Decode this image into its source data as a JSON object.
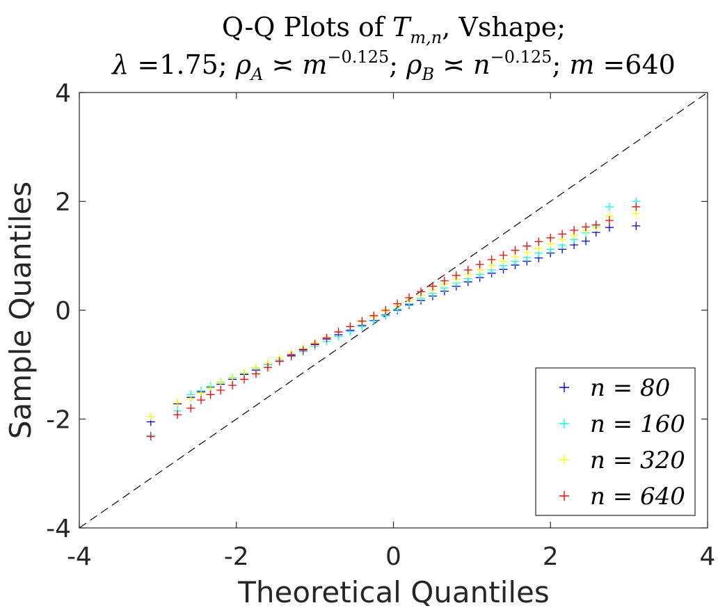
{
  "chart_data": {
    "type": "scatter",
    "title_line1": "Q-Q Plots of T̂m,n, Vshape;",
    "title_line2": "λ =1.75; ρA ≍ m−0.125; ρB ≍ n−0.125; m =640",
    "title_line1_parts": {
      "prefix": "Q-Q Plots of ",
      "symbol": "T",
      "subscript": "m,n",
      "suffix": ", Vshape;"
    },
    "title_line2_parts": {
      "lambda": "λ",
      "lambda_val": " =1.75; ",
      "rhoA": "ρ",
      "rhoA_sub": "A",
      "asymp1": " ≍ ",
      "m_base": "m",
      "m_exp": "−0.125",
      "sep1": "; ",
      "rhoB": "ρ",
      "rhoB_sub": "B",
      "asymp2": " ≍ ",
      "n_base": "n",
      "n_exp": "−0.125",
      "sep2": "; ",
      "m_label": "m",
      "m_val": " =640"
    },
    "xlabel": "Theoretical Quantiles",
    "ylabel": "Sample Quantiles",
    "xlim": [
      -4,
      4
    ],
    "ylim": [
      -4,
      4
    ],
    "xticks": [
      -4,
      -2,
      0,
      2,
      4
    ],
    "yticks": [
      -4,
      -2,
      0,
      2,
      4
    ],
    "xtick_labels": [
      "-4",
      "-2",
      "0",
      "2",
      "4"
    ],
    "ytick_labels": [
      "-4",
      "-2",
      "0",
      "2",
      "4"
    ],
    "reference_line": {
      "x": [
        -4,
        4
      ],
      "y": [
        -4,
        4
      ],
      "style": "dashed",
      "color": "#000000"
    },
    "legend_position": "bottom-right",
    "series": [
      {
        "name": "n = 80",
        "legend_label": "n = 80",
        "color": "#0000ff",
        "x": [
          -3.09,
          -2.75,
          -2.58,
          -2.45,
          -2.33,
          -2.2,
          -2.05,
          -1.9,
          -1.75,
          -1.6,
          -1.45,
          -1.3,
          -1.15,
          -1.0,
          -0.85,
          -0.7,
          -0.55,
          -0.4,
          -0.25,
          -0.1,
          0.05,
          0.2,
          0.35,
          0.5,
          0.65,
          0.8,
          0.95,
          1.1,
          1.25,
          1.4,
          1.55,
          1.7,
          1.85,
          2.0,
          2.15,
          2.3,
          2.45,
          2.58,
          2.75,
          3.09
        ],
        "y": [
          -2.05,
          -1.72,
          -1.6,
          -1.5,
          -1.42,
          -1.36,
          -1.27,
          -1.18,
          -1.1,
          -1.0,
          -0.92,
          -0.82,
          -0.72,
          -0.63,
          -0.53,
          -0.45,
          -0.37,
          -0.28,
          -0.19,
          -0.09,
          0.0,
          0.1,
          0.18,
          0.26,
          0.35,
          0.44,
          0.52,
          0.6,
          0.68,
          0.75,
          0.83,
          0.9,
          0.96,
          1.05,
          1.12,
          1.2,
          1.27,
          1.43,
          1.52,
          1.55
        ]
      },
      {
        "name": "n = 160",
        "legend_label": "n = 160",
        "color": "#00ffff",
        "x": [
          -3.09,
          -2.75,
          -2.58,
          -2.45,
          -2.33,
          -2.2,
          -2.05,
          -1.9,
          -1.75,
          -1.6,
          -1.45,
          -1.3,
          -1.15,
          -1.0,
          -0.85,
          -0.7,
          -0.55,
          -0.4,
          -0.25,
          -0.1,
          0.05,
          0.2,
          0.35,
          0.5,
          0.65,
          0.8,
          0.95,
          1.1,
          1.25,
          1.4,
          1.55,
          1.7,
          1.85,
          2.0,
          2.15,
          2.3,
          2.45,
          2.58,
          2.75,
          3.09
        ],
        "y": [
          -2.3,
          -1.85,
          -1.55,
          -1.48,
          -1.4,
          -1.32,
          -1.24,
          -1.16,
          -1.07,
          -1.0,
          -0.92,
          -0.85,
          -0.76,
          -0.66,
          -0.57,
          -0.48,
          -0.39,
          -0.3,
          -0.2,
          -0.1,
          0.02,
          0.12,
          0.22,
          0.31,
          0.41,
          0.5,
          0.58,
          0.66,
          0.74,
          0.82,
          0.9,
          0.97,
          1.05,
          1.12,
          1.2,
          1.3,
          1.42,
          1.55,
          1.9,
          2.0
        ]
      },
      {
        "name": "n = 320",
        "legend_label": "n = 320",
        "color": "#ffff00",
        "x": [
          -3.09,
          -2.75,
          -2.58,
          -2.45,
          -2.33,
          -2.2,
          -2.05,
          -1.9,
          -1.75,
          -1.6,
          -1.45,
          -1.3,
          -1.15,
          -1.0,
          -0.85,
          -0.7,
          -0.55,
          -0.4,
          -0.25,
          -0.1,
          0.05,
          0.2,
          0.35,
          0.5,
          0.65,
          0.8,
          0.95,
          1.1,
          1.25,
          1.4,
          1.55,
          1.7,
          1.85,
          2.0,
          2.15,
          2.3,
          2.45,
          2.58,
          2.75,
          3.09
        ],
        "y": [
          -1.95,
          -1.7,
          -1.62,
          -1.52,
          -1.43,
          -1.33,
          -1.25,
          -1.15,
          -1.06,
          -0.97,
          -0.88,
          -0.79,
          -0.7,
          -0.6,
          -0.5,
          -0.4,
          -0.3,
          -0.21,
          -0.12,
          -0.02,
          0.08,
          0.18,
          0.28,
          0.38,
          0.48,
          0.57,
          0.66,
          0.74,
          0.82,
          0.9,
          0.98,
          1.06,
          1.14,
          1.22,
          1.3,
          1.38,
          1.46,
          1.52,
          1.73,
          1.78
        ]
      },
      {
        "name": "n = 640",
        "legend_label": "n = 640",
        "color": "#ff0000",
        "x": [
          -3.09,
          -2.75,
          -2.58,
          -2.45,
          -2.33,
          -2.2,
          -2.05,
          -1.9,
          -1.75,
          -1.6,
          -1.45,
          -1.3,
          -1.15,
          -1.0,
          -0.85,
          -0.7,
          -0.55,
          -0.4,
          -0.25,
          -0.1,
          0.05,
          0.2,
          0.35,
          0.5,
          0.65,
          0.8,
          0.95,
          1.1,
          1.25,
          1.4,
          1.55,
          1.7,
          1.85,
          2.0,
          2.15,
          2.3,
          2.45,
          2.58,
          2.75,
          3.09
        ],
        "y": [
          -2.32,
          -1.92,
          -1.8,
          -1.65,
          -1.55,
          -1.47,
          -1.38,
          -1.27,
          -1.17,
          -1.05,
          -0.94,
          -0.84,
          -0.74,
          -0.62,
          -0.51,
          -0.4,
          -0.3,
          -0.2,
          -0.1,
          0.0,
          0.12,
          0.23,
          0.34,
          0.44,
          0.54,
          0.64,
          0.74,
          0.84,
          0.93,
          1.01,
          1.1,
          1.18,
          1.26,
          1.33,
          1.4,
          1.47,
          1.53,
          1.57,
          1.65,
          1.9
        ]
      }
    ]
  }
}
